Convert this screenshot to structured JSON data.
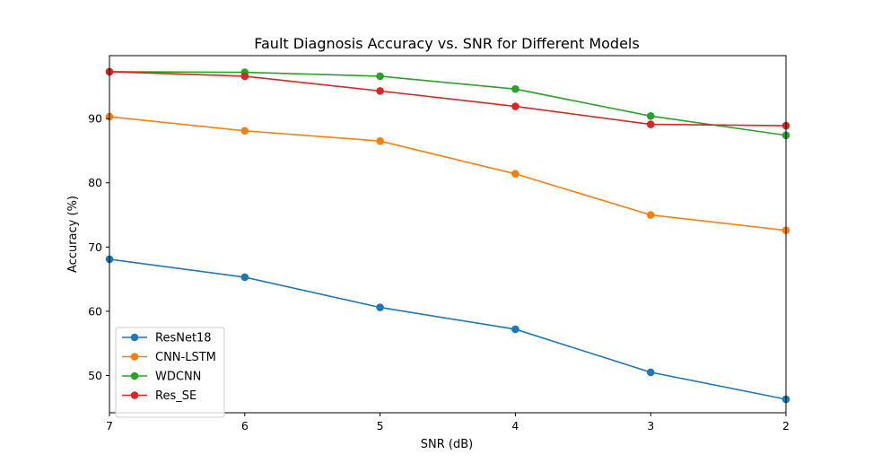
{
  "chart_data": {
    "type": "line",
    "title": "Fault Diagnosis Accuracy vs. SNR for Different Models",
    "xlabel": "SNR (dB)",
    "ylabel": "Accuracy (%)",
    "x": [
      7,
      6,
      5,
      4,
      3,
      2
    ],
    "x_ticks": [
      "7",
      "6",
      "5",
      "4",
      "3",
      "2"
    ],
    "xlim": [
      7,
      2
    ],
    "ylim": [
      44.2,
      99.8
    ],
    "y_ticks": [
      "50",
      "60",
      "70",
      "80",
      "90"
    ],
    "y_tick_values": [
      50,
      60,
      70,
      80,
      90
    ],
    "grid": false,
    "legend_position": "lower-left",
    "series": [
      {
        "name": "ResNet18",
        "color": "#1f77b4",
        "values": [
          68.1,
          65.3,
          60.6,
          57.2,
          50.5,
          46.3
        ]
      },
      {
        "name": "CNN-LSTM",
        "color": "#ff7f0e",
        "values": [
          90.3,
          88.1,
          86.5,
          81.4,
          75.0,
          72.6
        ]
      },
      {
        "name": "WDCNN",
        "color": "#2ca02c",
        "values": [
          97.3,
          97.2,
          96.6,
          94.6,
          90.4,
          87.4
        ]
      },
      {
        "name": "Res_SE",
        "color": "#d62728",
        "values": [
          97.3,
          96.6,
          94.3,
          91.9,
          89.1,
          88.9
        ]
      }
    ]
  }
}
